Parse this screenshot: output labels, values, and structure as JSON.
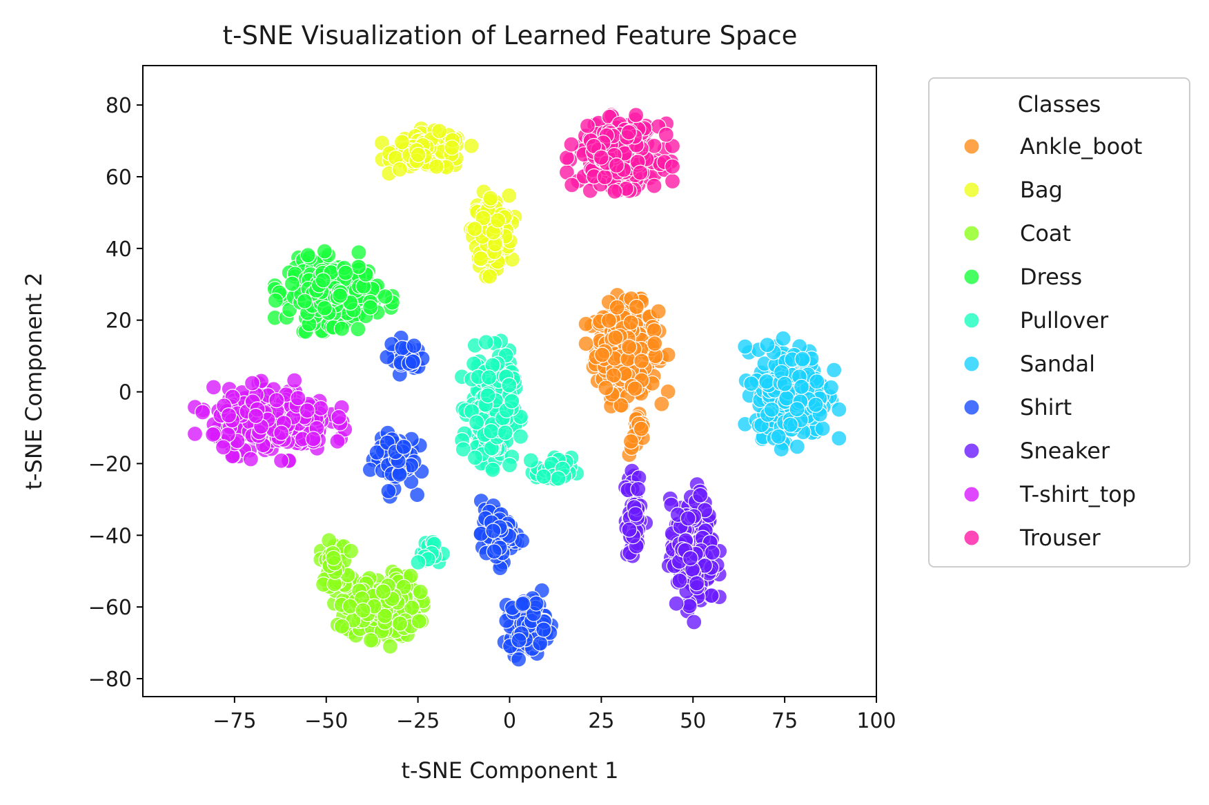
{
  "chart_data": {
    "type": "scatter",
    "title": "t-SNE Visualization of Learned Feature Space",
    "xlabel": "t-SNE Component 1",
    "ylabel": "t-SNE Component 2",
    "xlim": [
      -100,
      100
    ],
    "ylim": [
      -85,
      91
    ],
    "xticks": [
      -75,
      -50,
      -25,
      0,
      25,
      50,
      75,
      100
    ],
    "yticks": [
      -80,
      -60,
      -40,
      -20,
      0,
      20,
      40,
      60,
      80
    ],
    "xtick_labels": [
      "−75",
      "−50",
      "−25",
      "0",
      "25",
      "50",
      "75",
      "100"
    ],
    "ytick_labels": [
      "−80",
      "−60",
      "−40",
      "−20",
      "0",
      "20",
      "40",
      "60",
      "80"
    ],
    "grid": false,
    "legend": {
      "title": "Classes",
      "placement": "outside-right"
    },
    "series": [
      {
        "name": "Ankle_boot",
        "color": "#ff8c1a",
        "clusters": [
          {
            "center": [
              32,
              12
            ],
            "spread": [
              7,
              10
            ],
            "count": 320
          },
          {
            "center": [
              35,
              -12
            ],
            "spread": [
              2,
              5
            ],
            "count": 20
          }
        ]
      },
      {
        "name": "Bag",
        "color": "#eeff1a",
        "clusters": [
          {
            "center": [
              -22,
              67
            ],
            "spread": [
              8,
              4
            ],
            "count": 160
          },
          {
            "center": [
              -5,
              45
            ],
            "spread": [
              4,
              8
            ],
            "count": 180
          }
        ]
      },
      {
        "name": "Coat",
        "color": "#8cff1a",
        "clusters": [
          {
            "center": [
              -35,
              -60
            ],
            "spread": [
              8,
              7
            ],
            "count": 260
          },
          {
            "center": [
              -48,
              -48
            ],
            "spread": [
              3,
              5
            ],
            "count": 40
          }
        ]
      },
      {
        "name": "Dress",
        "color": "#1aff3c",
        "clusters": [
          {
            "center": [
              -48,
              28
            ],
            "spread": [
              10,
              7
            ],
            "count": 300
          }
        ]
      },
      {
        "name": "Pullover",
        "color": "#1affbe",
        "clusters": [
          {
            "center": [
              -5,
              -5
            ],
            "spread": [
              5,
              12
            ],
            "count": 260
          },
          {
            "center": [
              12,
              -22
            ],
            "spread": [
              4,
              3
            ],
            "count": 40
          },
          {
            "center": [
              -22,
              -45
            ],
            "spread": [
              3,
              3
            ],
            "count": 20
          }
        ]
      },
      {
        "name": "Sandal",
        "color": "#1ad2ff",
        "clusters": [
          {
            "center": [
              77,
              0
            ],
            "spread": [
              8,
              10
            ],
            "count": 330
          }
        ]
      },
      {
        "name": "Shirt",
        "color": "#1a4cff",
        "clusters": [
          {
            "center": [
              5,
              -65
            ],
            "spread": [
              4,
              6
            ],
            "count": 160
          },
          {
            "center": [
              -3,
              -40
            ],
            "spread": [
              4,
              6
            ],
            "count": 80
          },
          {
            "center": [
              -32,
              -18
            ],
            "spread": [
              5,
              7
            ],
            "count": 70
          },
          {
            "center": [
              -28,
              10
            ],
            "spread": [
              4,
              4
            ],
            "count": 25
          }
        ]
      },
      {
        "name": "Sneaker",
        "color": "#6a1aff",
        "clusters": [
          {
            "center": [
              50,
              -45
            ],
            "spread": [
              5,
              12
            ],
            "count": 200
          },
          {
            "center": [
              34,
              -35
            ],
            "spread": [
              2,
              10
            ],
            "count": 60
          }
        ]
      },
      {
        "name": "T-shirt_top",
        "color": "#d81aff",
        "clusters": [
          {
            "center": [
              -65,
              -8
            ],
            "spread": [
              13,
              7
            ],
            "count": 330
          }
        ]
      },
      {
        "name": "Trouser",
        "color": "#ff1aa6",
        "clusters": [
          {
            "center": [
              30,
              66
            ],
            "spread": [
              9,
              7
            ],
            "count": 340
          }
        ]
      }
    ]
  }
}
